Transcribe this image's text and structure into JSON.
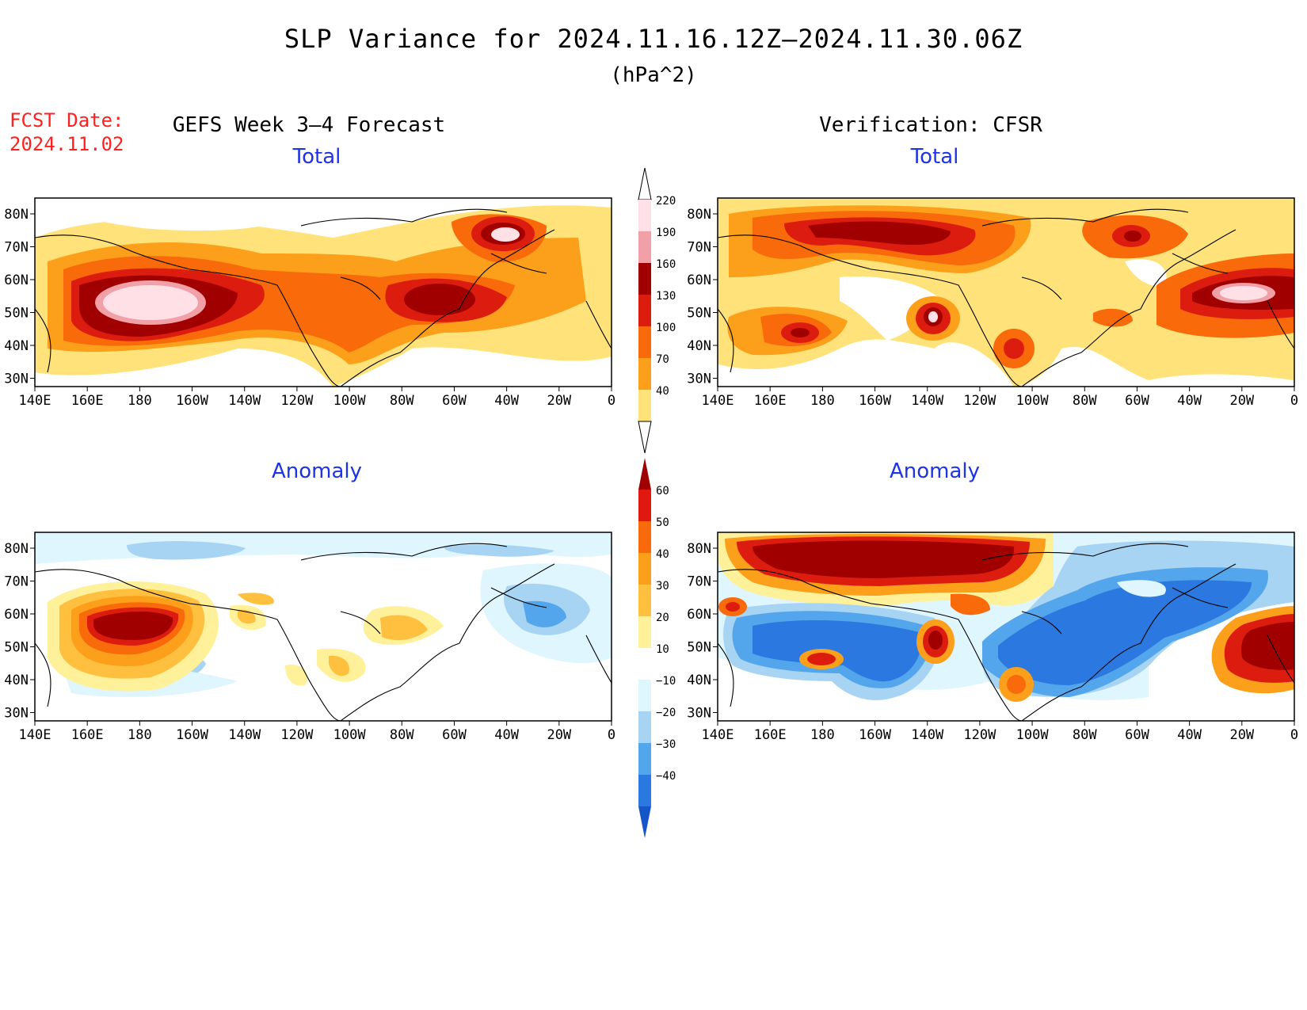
{
  "header": {
    "title": "SLP Variance for 2024.11.16.12Z–2024.11.30.06Z",
    "units": "(hPa^2)",
    "fcst_label": "FCST Date:",
    "fcst_date": "2024.11.02",
    "left_column": "GEFS Week 3–4 Forecast",
    "right_column": "Verification: CFSR"
  },
  "panels": {
    "top_left": "Total",
    "top_right": "Total",
    "bottom_left": "Anomaly",
    "bottom_right": "Anomaly"
  },
  "axes": {
    "lat_labels": [
      "80N",
      "70N",
      "60N",
      "50N",
      "40N",
      "30N"
    ],
    "lon_labels": [
      "140E",
      "160E",
      "180",
      "160W",
      "140W",
      "120W",
      "100W",
      "80W",
      "60W",
      "40W",
      "20W",
      "0"
    ]
  },
  "colorbars": {
    "total": {
      "labels": [
        "220",
        "190",
        "160",
        "130",
        "100",
        "70",
        "40"
      ],
      "colors": [
        "#ffe0e6",
        "#f2a0a8",
        "#a00000",
        "#dd1c10",
        "#f86a0a",
        "#fca01c",
        "#ffe37a"
      ]
    },
    "anomaly": {
      "labels": [
        "60",
        "50",
        "40",
        "30",
        "20",
        "10",
        "−10",
        "−20",
        "−30",
        "−40"
      ],
      "colors": [
        "#a00000",
        "#e01810",
        "#f86a0a",
        "#fca01c",
        "#ffc040",
        "#fff09a",
        "#ffffff",
        "#dff6ff",
        "#a8d4f4",
        "#54a6ec",
        "#2a78e0",
        "#1456c8"
      ]
    }
  },
  "chart_data": [
    {
      "type": "heatmap",
      "panel": "GEFS Week 3–4 Forecast — Total",
      "description_fields": "approximate regional maxima read from shading",
      "x": "longitude",
      "y": "latitude",
      "xlim": [
        "140E",
        "0"
      ],
      "ylim": [
        "25N",
        "85N"
      ],
      "levels": [
        40,
        70,
        100,
        130,
        160,
        190,
        220
      ],
      "features": [
        {
          "lon": "175E",
          "lat": 53,
          "value": 220
        },
        {
          "lon": "65W",
          "lat": 52,
          "value": 160
        },
        {
          "lon": "40W",
          "lat": 73,
          "value": 220
        }
      ]
    },
    {
      "type": "heatmap",
      "panel": "Verification: CFSR — Total",
      "x": "longitude",
      "y": "latitude",
      "xlim": [
        "140E",
        "0"
      ],
      "ylim": [
        "25N",
        "85N"
      ],
      "levels": [
        40,
        70,
        100,
        130,
        160,
        190,
        220
      ],
      "features": [
        {
          "lon": "150W",
          "lat": 75,
          "value": 160
        },
        {
          "lon": "180",
          "lat": 43,
          "value": 190
        },
        {
          "lon": "133W",
          "lat": 47,
          "value": 220
        },
        {
          "lon": "40W",
          "lat": 73,
          "value": 160
        },
        {
          "lon": "20W",
          "lat": 53,
          "value": 220
        }
      ]
    },
    {
      "type": "heatmap",
      "panel": "GEFS Week 3–4 Forecast — Anomaly",
      "x": "longitude",
      "y": "latitude",
      "xlim": [
        "140E",
        "0"
      ],
      "ylim": [
        "25N",
        "85N"
      ],
      "levels": [
        -40,
        -30,
        -20,
        -10,
        10,
        20,
        30,
        40,
        50,
        60
      ],
      "features": [
        {
          "lon": "175E",
          "lat": 54,
          "value": 60
        },
        {
          "lon": "35W",
          "lat": 58,
          "value": -30
        },
        {
          "lon": "75W",
          "lat": 55,
          "value": 20
        }
      ]
    },
    {
      "type": "heatmap",
      "panel": "Verification: CFSR — Anomaly",
      "x": "longitude",
      "y": "latitude",
      "xlim": [
        "140E",
        "0"
      ],
      "ylim": [
        "25N",
        "85N"
      ],
      "levels": [
        -40,
        -30,
        -20,
        -10,
        10,
        20,
        30,
        40,
        50,
        60
      ],
      "features": [
        {
          "lon": "150W",
          "lat": 77,
          "value": 60
        },
        {
          "lon": "15W",
          "lat": 52,
          "value": 60
        },
        {
          "lon": "130W",
          "lat": 46,
          "value": 60
        },
        {
          "lon": "160W",
          "lat": 50,
          "value": -40
        },
        {
          "lon": "60W",
          "lat": 55,
          "value": -40
        }
      ]
    }
  ]
}
